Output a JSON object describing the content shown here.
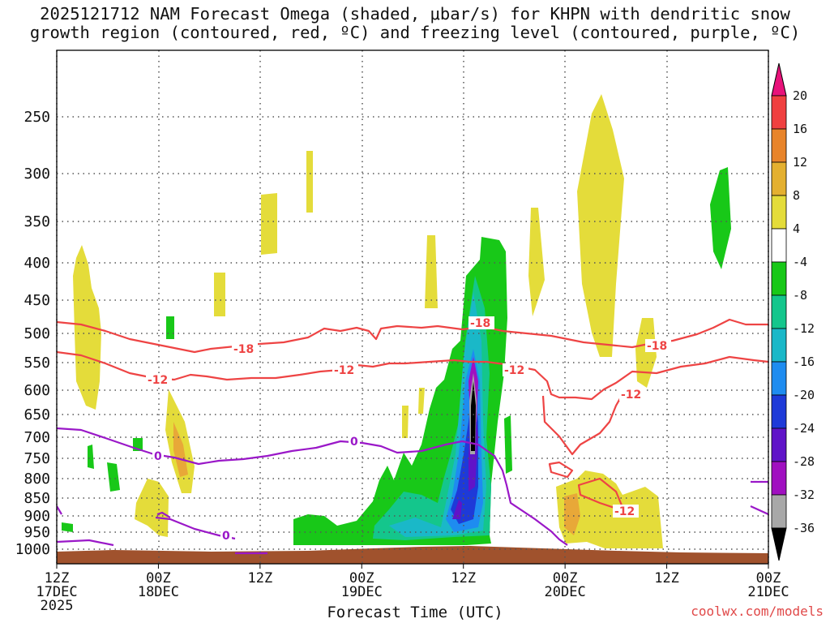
{
  "title_line1": "2025121712 NAM Forecast Omega (shaded, μbar/s) for KHPN with dendritic snow",
  "title_line2": "growth region (contoured, red, ºC) and freezing level (contoured, purple, ºC)",
  "credit": "coolwx.com/models",
  "chart_data": {
    "type": "heatmap",
    "title": "2025121712 NAM Forecast Omega (shaded, μbar/s) for KHPN with dendritic snow growth region (contoured, red, ºC) and freezing level (contoured, purple, ºC)",
    "xlabel": "Forecast Time (UTC)",
    "ylabel": "",
    "x_range_hours": [
      0,
      84
    ],
    "y_range_mb": [
      200,
      1000
    ],
    "y_ticks": [
      "250",
      "300",
      "350",
      "400",
      "450",
      "500",
      "550",
      "600",
      "650",
      "700",
      "750",
      "800",
      "850",
      "900",
      "950",
      "1000"
    ],
    "x_ticks": [
      {
        "hour": 0,
        "lines": [
          "12Z",
          "17DEC",
          "2025"
        ]
      },
      {
        "hour": 12,
        "lines": [
          "00Z",
          "18DEC"
        ]
      },
      {
        "hour": 24,
        "lines": [
          "12Z"
        ]
      },
      {
        "hour": 36,
        "lines": [
          "00Z",
          "19DEC"
        ]
      },
      {
        "hour": 48,
        "lines": [
          "12Z"
        ]
      },
      {
        "hour": 60,
        "lines": [
          "00Z",
          "20DEC"
        ]
      },
      {
        "hour": 72,
        "lines": [
          "12Z"
        ]
      },
      {
        "hour": 84,
        "lines": [
          "00Z",
          "21DEC"
        ]
      }
    ],
    "colorbar": {
      "labels": [
        "20",
        "16",
        "12",
        "8",
        "4",
        "-4",
        "-8",
        "-12",
        "-16",
        "-20",
        "-24",
        "-28",
        "-32",
        "-36"
      ],
      "colors": [
        "#e8127a",
        "#f04040",
        "#e8842a",
        "#e4b030",
        "#e4dc3a",
        "#ffffff",
        "#18c818",
        "#14c68c",
        "#1ab8c8",
        "#1e8cf0",
        "#1e3ad8",
        "#6014c8",
        "#a010c0",
        "#a8a8a8",
        "#000000"
      ]
    },
    "shaded_regions": [
      {
        "kind": "upward_motion",
        "color": "#18c818",
        "value": "-4 to -8",
        "hours": [
          27,
          55
        ],
        "levels_mb": [
          350,
          1000
        ]
      },
      {
        "kind": "upward_motion",
        "color": "#1a6cd8",
        "value": "-16 to -36",
        "hours": [
          47,
          50
        ],
        "levels_mb": [
          450,
          950
        ]
      },
      {
        "kind": "sinking_motion",
        "color": "#e4dc3a",
        "value": "4 to 8",
        "hours": [
          2,
          4
        ],
        "levels_mb": [
          380,
          640
        ]
      },
      {
        "kind": "sinking_motion",
        "color": "#e4dc3a",
        "value": "4 to 8",
        "hours": [
          63,
          72
        ],
        "levels_mb": [
          220,
          540
        ]
      },
      {
        "kind": "sinking_motion",
        "color": "#e4dc3a",
        "value": "4 to 8",
        "hours": [
          59,
          70
        ],
        "levels_mb": [
          800,
          960
        ]
      }
    ],
    "contours": [
      {
        "label": "-18",
        "color": "#ee4444",
        "label_hours": [
          22.5,
          48.5,
          71.5
        ]
      },
      {
        "label": "-12",
        "color": "#ee4444",
        "label_hours": [
          12.5,
          34.5,
          54,
          68.5,
          66.5
        ]
      },
      {
        "label": "0",
        "color": "#9a18c8",
        "label_hours": [
          11.5,
          35.5,
          20.5
        ]
      }
    ],
    "legend": "right"
  },
  "labels": {
    "c18": "-18",
    "c12": "-12",
    "c0": "0"
  }
}
